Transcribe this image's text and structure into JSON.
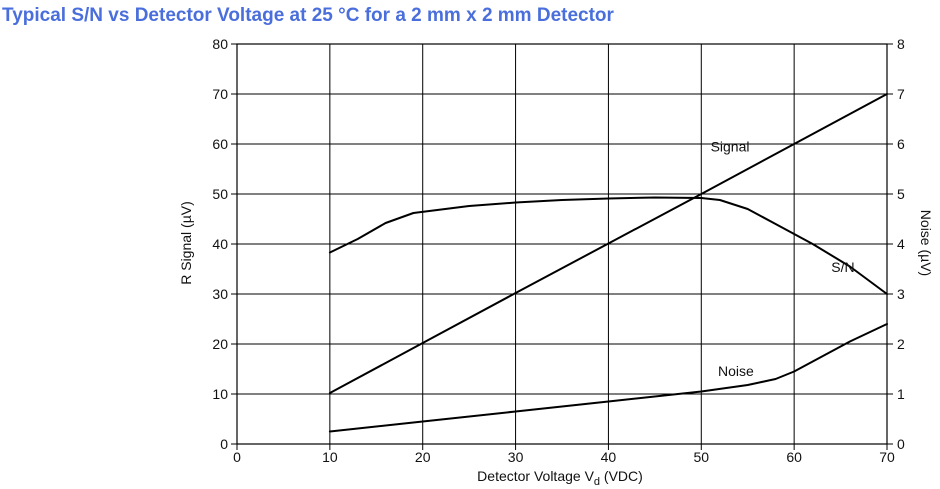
{
  "title": "Typical S/N vs Detector Voltage at 25 °C for a 2 mm x 2 mm Detector",
  "colors": {
    "title": "#4a6fdc",
    "lines": "#000000",
    "grid": "#000000"
  },
  "chart_data": {
    "type": "line",
    "title": "Typical S/N vs Detector Voltage at 25 °C for a 2 mm x 2 mm Detector",
    "xlabel_main": "Detector Voltage V",
    "xlabel_sub": "d",
    "xlabel_unit": " (VDC)",
    "ylabel_left": "R Signal (µV)",
    "ylabel_right": "Noise (µV)",
    "xlim": [
      0,
      70
    ],
    "ylim_left": [
      0,
      80
    ],
    "ylim_right": [
      0,
      8
    ],
    "x_ticks": [
      "0",
      "10",
      "20",
      "30",
      "40",
      "50",
      "60",
      "70"
    ],
    "y_left_ticks": [
      "0",
      "10",
      "20",
      "30",
      "40",
      "50",
      "60",
      "70",
      "80"
    ],
    "y_right_ticks": [
      "0",
      "1",
      "2",
      "3",
      "4",
      "5",
      "6",
      "7",
      "8"
    ],
    "grid": true,
    "series": [
      {
        "name": "Signal",
        "axis": "left",
        "points": [
          [
            10,
            10.2
          ],
          [
            20,
            20.2
          ],
          [
            30,
            30.2
          ],
          [
            40,
            40.1
          ],
          [
            50,
            50.0
          ],
          [
            60,
            60.0
          ],
          [
            70,
            70.0
          ]
        ]
      },
      {
        "name": "S/N",
        "axis": "left",
        "points": [
          [
            10,
            38.3
          ],
          [
            13,
            41.0
          ],
          [
            16,
            44.2
          ],
          [
            19,
            46.2
          ],
          [
            25,
            47.6
          ],
          [
            30,
            48.3
          ],
          [
            35,
            48.8
          ],
          [
            40,
            49.1
          ],
          [
            45,
            49.3
          ],
          [
            50,
            49.2
          ],
          [
            52,
            48.8
          ],
          [
            55,
            47.0
          ],
          [
            58,
            44.0
          ],
          [
            62,
            40.0
          ],
          [
            66,
            35.5
          ],
          [
            70,
            30.0
          ]
        ]
      },
      {
        "name": "Noise",
        "axis": "right",
        "points": [
          [
            10,
            0.25
          ],
          [
            20,
            0.45
          ],
          [
            30,
            0.65
          ],
          [
            40,
            0.85
          ],
          [
            50,
            1.05
          ],
          [
            55,
            1.18
          ],
          [
            58,
            1.3
          ],
          [
            60,
            1.45
          ],
          [
            63,
            1.75
          ],
          [
            66,
            2.05
          ],
          [
            70,
            2.4
          ]
        ]
      }
    ],
    "annotations": [
      {
        "text": "Signal",
        "series": "Signal"
      },
      {
        "text": "S/N",
        "series": "S/N"
      },
      {
        "text": "Noise",
        "series": "Noise"
      }
    ]
  }
}
